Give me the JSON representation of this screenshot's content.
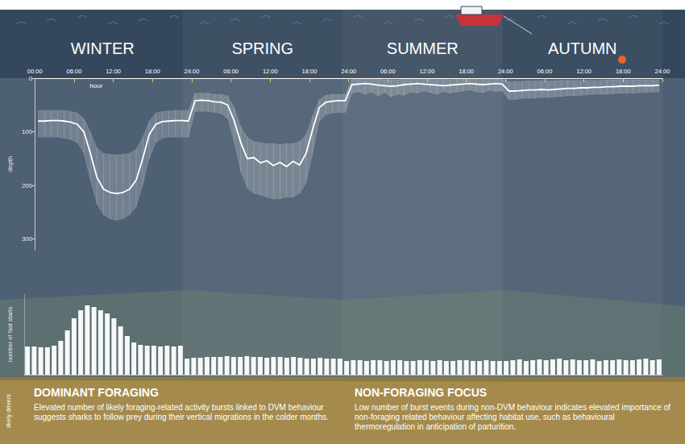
{
  "chart_data": [
    {
      "type": "line",
      "xlabel": "hour",
      "ylabel": "depth",
      "color": "#ffffff",
      "grid": false,
      "xlim": [
        0,
        96
      ],
      "xticks": [
        {
          "value": 0,
          "label": "00:00"
        },
        {
          "value": 6,
          "label": "06:00"
        },
        {
          "value": 12,
          "label": "12:00"
        },
        {
          "value": 18,
          "label": "18:00"
        },
        {
          "value": 24,
          "label": "24:00"
        },
        {
          "value": 30,
          "label": "06:00"
        },
        {
          "value": 36,
          "label": "12:00"
        },
        {
          "value": 42,
          "label": "18:00"
        },
        {
          "value": 48,
          "label": "24:00"
        },
        {
          "value": 54,
          "label": "06:00"
        },
        {
          "value": 60,
          "label": "12:00"
        },
        {
          "value": 66,
          "label": "18:00"
        },
        {
          "value": 72,
          "label": "24:00"
        },
        {
          "value": 78,
          "label": "06:00"
        },
        {
          "value": 84,
          "label": "12:00"
        },
        {
          "value": 90,
          "label": "18:00"
        },
        {
          "value": 96,
          "label": "24:00"
        }
      ],
      "ylim": [
        0,
        320
      ],
      "yticks": [
        0,
        100,
        200,
        300
      ],
      "x": [
        0.5,
        1.5,
        2.5,
        3.5,
        4.5,
        5.5,
        6.5,
        7.5,
        8.5,
        9.5,
        10.5,
        11.5,
        12.5,
        13.5,
        14.5,
        15.5,
        16.5,
        17.5,
        18.5,
        19.5,
        20.5,
        21.5,
        22.5,
        23.5,
        24.5,
        25.5,
        26.5,
        27.5,
        28.5,
        29.5,
        30.5,
        31.5,
        32.5,
        33.5,
        34.5,
        35.5,
        36.5,
        37.5,
        38.5,
        39.5,
        40.5,
        41.5,
        42.5,
        43.5,
        44.5,
        45.5,
        46.5,
        47.5,
        48.5,
        49.5,
        50.5,
        51.5,
        52.5,
        53.5,
        54.5,
        55.5,
        56.5,
        57.5,
        58.5,
        59.5,
        60.5,
        61.5,
        62.5,
        63.5,
        64.5,
        65.5,
        66.5,
        67.5,
        68.5,
        69.5,
        70.5,
        71.5,
        72.5,
        73.5,
        74.5,
        75.5,
        76.5,
        77.5,
        78.5,
        79.5,
        80.5,
        81.5,
        82.5,
        83.5,
        84.5,
        85.5,
        86.5,
        87.5,
        88.5,
        89.5,
        90.5,
        91.5,
        92.5,
        93.5,
        94.5,
        95.5
      ],
      "values": [
        80,
        80,
        79,
        79,
        80,
        82,
        86,
        100,
        140,
        185,
        207,
        213,
        215,
        213,
        207,
        190,
        150,
        105,
        86,
        81,
        80,
        79,
        79,
        80,
        42,
        41,
        42,
        44,
        45,
        50,
        80,
        120,
        150,
        148,
        158,
        154,
        163,
        157,
        165,
        155,
        162,
        140,
        95,
        55,
        45,
        43,
        42,
        42,
        12,
        11,
        10,
        11,
        13,
        14,
        15,
        14,
        12,
        11,
        10,
        11,
        12,
        13,
        14,
        13,
        12,
        11,
        10,
        11,
        12,
        11,
        10,
        11,
        24,
        24,
        23,
        22,
        22,
        21,
        22,
        21,
        20,
        19,
        19,
        18,
        18,
        17,
        17,
        16,
        16,
        15,
        15,
        15,
        14,
        14,
        14,
        13
      ],
      "band_low": [
        60,
        60,
        60,
        60,
        60,
        62,
        65,
        75,
        100,
        130,
        140,
        142,
        143,
        142,
        140,
        132,
        110,
        80,
        65,
        62,
        61,
        60,
        60,
        60,
        28,
        28,
        28,
        30,
        30,
        33,
        55,
        90,
        110,
        118,
        120,
        122,
        122,
        124,
        122,
        122,
        118,
        105,
        70,
        40,
        32,
        30,
        30,
        30,
        2,
        2,
        2,
        2,
        2,
        3,
        3,
        3,
        2,
        2,
        2,
        2,
        2,
        2,
        2,
        3,
        2,
        2,
        2,
        2,
        2,
        2,
        2,
        2,
        6,
        6,
        6,
        5,
        5,
        5,
        5,
        5,
        4,
        4,
        4,
        4,
        4,
        4,
        4,
        3,
        3,
        3,
        3,
        3,
        3,
        3,
        3,
        3
      ],
      "band_high": [
        110,
        110,
        110,
        110,
        112,
        115,
        120,
        140,
        190,
        235,
        255,
        262,
        265,
        262,
        255,
        240,
        200,
        150,
        120,
        112,
        110,
        110,
        110,
        110,
        62,
        62,
        62,
        64,
        66,
        75,
        120,
        175,
        205,
        215,
        218,
        222,
        225,
        225,
        222,
        222,
        215,
        195,
        140,
        80,
        68,
        65,
        64,
        64,
        28,
        25,
        30,
        26,
        33,
        27,
        35,
        30,
        32,
        26,
        28,
        24,
        27,
        30,
        25,
        28,
        26,
        24,
        22,
        25,
        27,
        23,
        25,
        24,
        40,
        40,
        38,
        38,
        37,
        36,
        36,
        35,
        34,
        33,
        33,
        32,
        31,
        30,
        30,
        30,
        29,
        28,
        28,
        28,
        27,
        27,
        26,
        26
      ]
    },
    {
      "type": "bar",
      "ylabel": "number of fast starts",
      "color": "#ffffff",
      "grid": false,
      "tick_labels": false,
      "xlim": [
        0,
        96
      ],
      "ylim": [
        0,
        100
      ],
      "x": [
        0.5,
        1.5,
        2.5,
        3.5,
        4.5,
        5.5,
        6.5,
        7.5,
        8.5,
        9.5,
        10.5,
        11.5,
        12.5,
        13.5,
        14.5,
        15.5,
        16.5,
        17.5,
        18.5,
        19.5,
        20.5,
        21.5,
        22.5,
        23.5,
        24.5,
        25.5,
        26.5,
        27.5,
        28.5,
        29.5,
        30.5,
        31.5,
        32.5,
        33.5,
        34.5,
        35.5,
        36.5,
        37.5,
        38.5,
        39.5,
        40.5,
        41.5,
        42.5,
        43.5,
        44.5,
        45.5,
        46.5,
        47.5,
        48.5,
        49.5,
        50.5,
        51.5,
        52.5,
        53.5,
        54.5,
        55.5,
        56.5,
        57.5,
        58.5,
        59.5,
        60.5,
        61.5,
        62.5,
        63.5,
        64.5,
        65.5,
        66.5,
        67.5,
        68.5,
        69.5,
        70.5,
        71.5,
        72.5,
        73.5,
        74.5,
        75.5,
        76.5,
        77.5,
        78.5,
        79.5,
        80.5,
        81.5,
        82.5,
        83.5,
        84.5,
        85.5,
        86.5,
        87.5,
        88.5,
        89.5,
        90.5,
        91.5,
        92.5,
        93.5,
        94.5,
        95.5
      ],
      "values": [
        35,
        35,
        34,
        34,
        36,
        42,
        55,
        70,
        80,
        86,
        84,
        80,
        76,
        70,
        60,
        48,
        40,
        37,
        36,
        36,
        35,
        36,
        35,
        36,
        20,
        21,
        21,
        22,
        22,
        22,
        23,
        22,
        22,
        23,
        22,
        22,
        21,
        22,
        22,
        21,
        22,
        21,
        20,
        20,
        21,
        20,
        20,
        20,
        17,
        18,
        18,
        17,
        18,
        18,
        17,
        18,
        18,
        17,
        17,
        18,
        18,
        17,
        18,
        17,
        17,
        18,
        18,
        17,
        17,
        18,
        17,
        17,
        17,
        18,
        19,
        17,
        18,
        19,
        18,
        19,
        20,
        18,
        19,
        18,
        18,
        19,
        17,
        18,
        18,
        19,
        18,
        18,
        19,
        20,
        18,
        19
      ]
    }
  ],
  "seasons": [
    "WINTER",
    "SPRING",
    "SUMMER",
    "AUTUMN"
  ],
  "drivers": {
    "label": "likely drivers",
    "panels": [
      {
        "title": "DOMINANT FORAGING",
        "text": "Elevated number of likely foraging-related activity bursts linked to DVM behaviour suggests sharks to follow prey during their vertical migrations in the colder months."
      },
      {
        "title": "NON-FORAGING FOCUS",
        "text": "Low number of burst events during non-DVM behaviour indicates elevated importance of non-foraging related behaviour affecting habitat use, such as behavioural thermoregulation in anticipation of parturition."
      }
    ]
  }
}
